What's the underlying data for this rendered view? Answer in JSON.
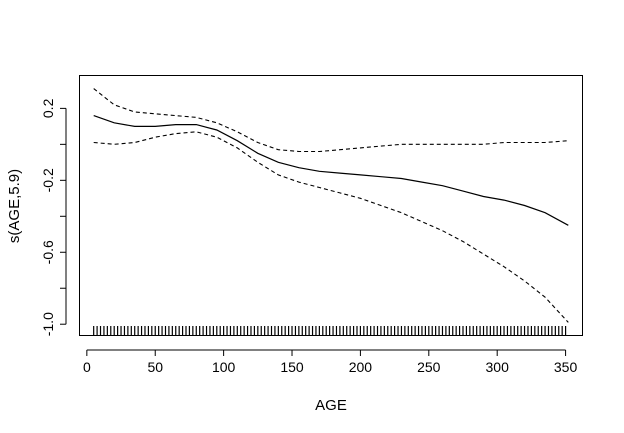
{
  "chart_data": {
    "type": "line",
    "title": "",
    "xlabel": "AGE",
    "ylabel": "s(AGE,5.9)",
    "xlim": [
      -5,
      362
    ],
    "ylim": [
      -1.06,
      0.38
    ],
    "x_ticks": [
      0,
      50,
      100,
      150,
      200,
      250,
      300,
      350
    ],
    "y_ticks": [
      -1.0,
      -0.8,
      -0.6,
      -0.4,
      -0.2,
      0.0,
      0.2
    ],
    "y_tick_labels": [
      "-1.0",
      "",
      "-0.6",
      "",
      "-0.2",
      "",
      "0.2"
    ],
    "grid": false,
    "legend": "none",
    "series": [
      {
        "role": "fit",
        "style": "solid",
        "x": [
          5,
          20,
          35,
          50,
          65,
          80,
          95,
          110,
          125,
          140,
          155,
          170,
          185,
          200,
          215,
          230,
          245,
          260,
          275,
          290,
          305,
          320,
          335,
          352
        ],
        "y": [
          0.16,
          0.12,
          0.1,
          0.1,
          0.11,
          0.11,
          0.08,
          0.02,
          -0.05,
          -0.1,
          -0.13,
          -0.15,
          -0.16,
          -0.17,
          -0.18,
          -0.19,
          -0.21,
          -0.23,
          -0.26,
          -0.29,
          -0.31,
          -0.34,
          -0.38,
          -0.45
        ]
      },
      {
        "role": "upper-band",
        "style": "dashed",
        "x": [
          5,
          20,
          35,
          50,
          65,
          80,
          95,
          110,
          125,
          140,
          155,
          170,
          185,
          200,
          215,
          230,
          245,
          260,
          275,
          290,
          305,
          320,
          335,
          352
        ],
        "y": [
          0.31,
          0.22,
          0.18,
          0.17,
          0.16,
          0.15,
          0.12,
          0.07,
          0.01,
          -0.03,
          -0.04,
          -0.04,
          -0.03,
          -0.02,
          -0.01,
          0.0,
          0.0,
          0.0,
          0.0,
          0.0,
          0.01,
          0.01,
          0.01,
          0.02
        ]
      },
      {
        "role": "lower-band",
        "style": "dashed",
        "x": [
          5,
          20,
          35,
          50,
          65,
          80,
          95,
          110,
          125,
          140,
          155,
          170,
          185,
          200,
          215,
          230,
          245,
          260,
          275,
          290,
          305,
          320,
          335,
          352
        ],
        "y": [
          0.01,
          0.0,
          0.01,
          0.04,
          0.06,
          0.07,
          0.04,
          -0.02,
          -0.1,
          -0.17,
          -0.21,
          -0.24,
          -0.27,
          -0.3,
          -0.34,
          -0.38,
          -0.43,
          -0.48,
          -0.54,
          -0.61,
          -0.68,
          -0.76,
          -0.85,
          -0.99
        ]
      }
    ],
    "rug": {
      "from": 5,
      "to": 352,
      "step": 2.5
    }
  }
}
